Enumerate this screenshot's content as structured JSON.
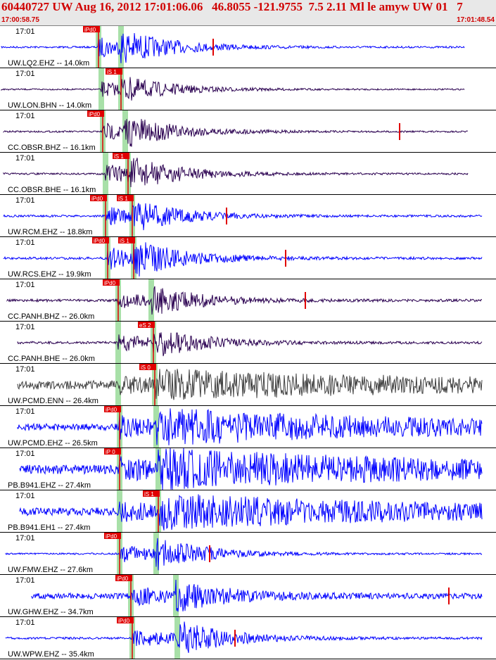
{
  "header": {
    "title": "60440727 UW Aug 16, 2012 17:01:06.06   46.8055 -121.9755  7.5 2.11 Ml le amyw UW 01   7",
    "start_time": "17:00:58.75",
    "end_time": "17:01:48.54"
  },
  "colors": {
    "header_bg": "#e8e8e8",
    "header_text": "#d00000",
    "pick_box": "#e00000",
    "pick_text": "#ffffff",
    "window_shade": "#a8e0a8",
    "trace_blue": "#0000ff",
    "trace_purple": "#2a0050",
    "trace_gray": "#404040"
  },
  "traces": [
    {
      "time": "17:01",
      "station": "UW.LQ2.EHZ -- 14.0km",
      "picks": [
        "iPd0"
      ],
      "color": "#0000ff"
    },
    {
      "time": "17:01",
      "station": "UW.LON.BHN -- 14.0km",
      "picks": [
        "iS 1"
      ],
      "color": "#2a0050"
    },
    {
      "time": "17:01",
      "station": "CC.OBSR.BHZ -- 16.1km",
      "picks": [
        "iPd0"
      ],
      "color": "#2a0050"
    },
    {
      "time": "17:01",
      "station": "CC.OBSR.BHE -- 16.1km",
      "picks": [
        "iS 1"
      ],
      "color": "#2a0050"
    },
    {
      "time": "17:01",
      "station": "UW.RCM.EHZ -- 18.8km",
      "picks": [
        "iPd0",
        "iS 1"
      ],
      "color": "#0000ff"
    },
    {
      "time": "17:01",
      "station": "UW.RCS.EHZ -- 19.9km",
      "picks": [
        "iPd0",
        "iS 1"
      ],
      "color": "#0000ff"
    },
    {
      "time": "17:01",
      "station": "CC.PANH.BHZ -- 26.0km",
      "picks": [
        "iPd0"
      ],
      "color": "#2a0050"
    },
    {
      "time": "17:01",
      "station": "CC.PANH.BHE -- 26.0km",
      "picks": [
        "eS 2"
      ],
      "color": "#2a0050"
    },
    {
      "time": "17:01",
      "station": "UW.PCMD.ENN -- 26.4km",
      "picks": [
        "iS 0"
      ],
      "color": "#404040"
    },
    {
      "time": "17:01",
      "station": "UW.PCMD.EHZ -- 26.5km",
      "picks": [
        "iPd0"
      ],
      "color": "#0000ff"
    },
    {
      "time": "17:01",
      "station": "PB.B941.EHZ -- 27.4km",
      "picks": [
        "iP 0"
      ],
      "color": "#0000ff"
    },
    {
      "time": "17:01",
      "station": "PB.B941.EH1 -- 27.4km",
      "picks": [
        "iS 1"
      ],
      "color": "#0000ff"
    },
    {
      "time": "17:01",
      "station": "UW.FMW.EHZ -- 27.6km",
      "picks": [
        "iPd0"
      ],
      "color": "#0000ff"
    },
    {
      "time": "17:01",
      "station": "UW.GHW.EHZ -- 34.7km",
      "picks": [
        "iPd0"
      ],
      "color": "#0000ff"
    },
    {
      "time": "17:01",
      "station": "UW.WPW.EHZ -- 35.4km",
      "picks": [
        "iPd0"
      ],
      "color": "#0000ff"
    }
  ]
}
